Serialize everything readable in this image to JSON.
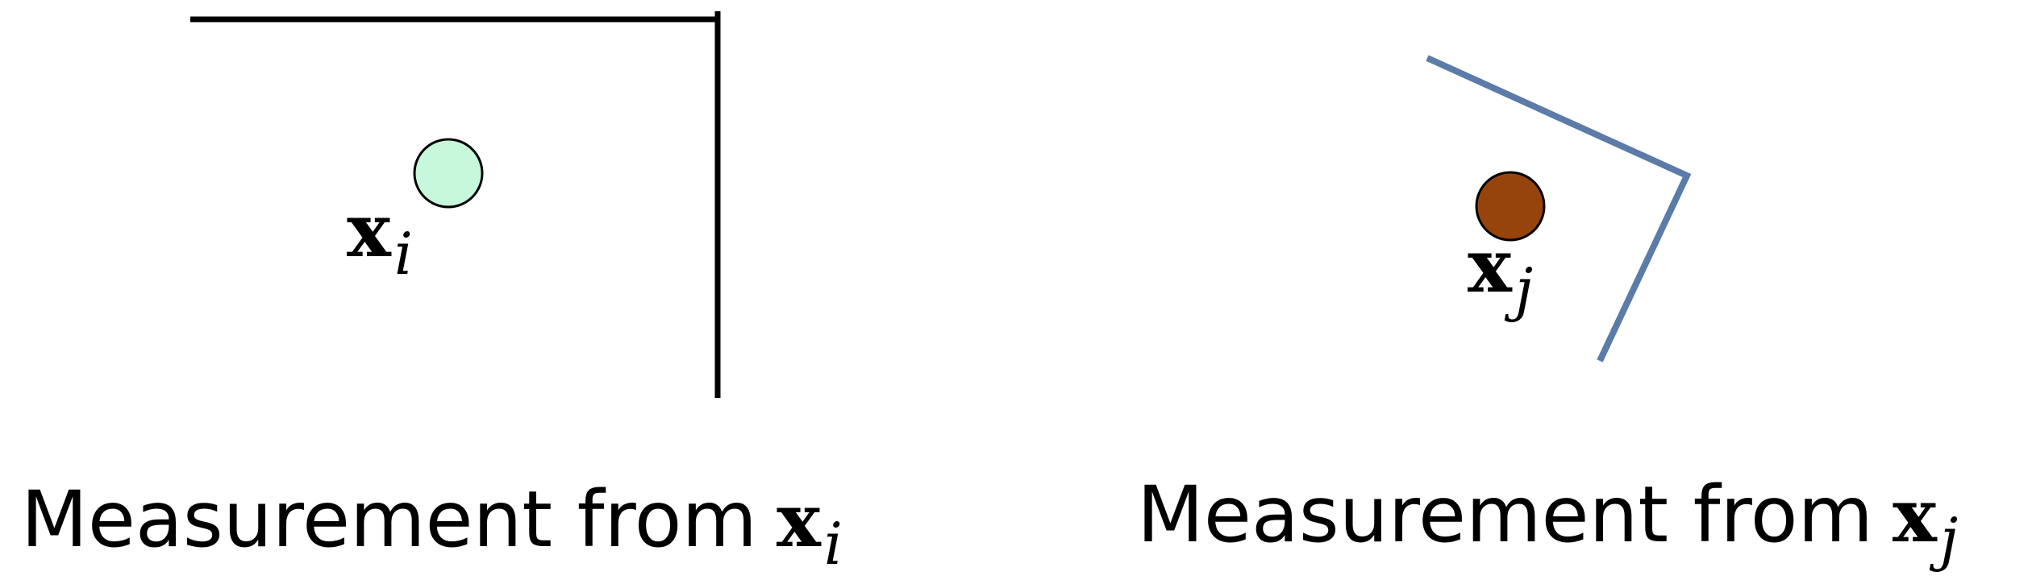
{
  "left_panel": {
    "point_label": {
      "base": "x",
      "subscript": "i"
    },
    "point_color": "#c6f8dc",
    "wall_color": "#000000",
    "caption": {
      "text": "Measurement from",
      "var": "x",
      "subscript": "i"
    }
  },
  "right_panel": {
    "point_label": {
      "base": "x",
      "subscript": "j"
    },
    "point_color": "#96440c",
    "wall_color": "#5b7ba8",
    "caption": {
      "text": "Measurement from",
      "var": "x",
      "subscript": "j"
    }
  }
}
